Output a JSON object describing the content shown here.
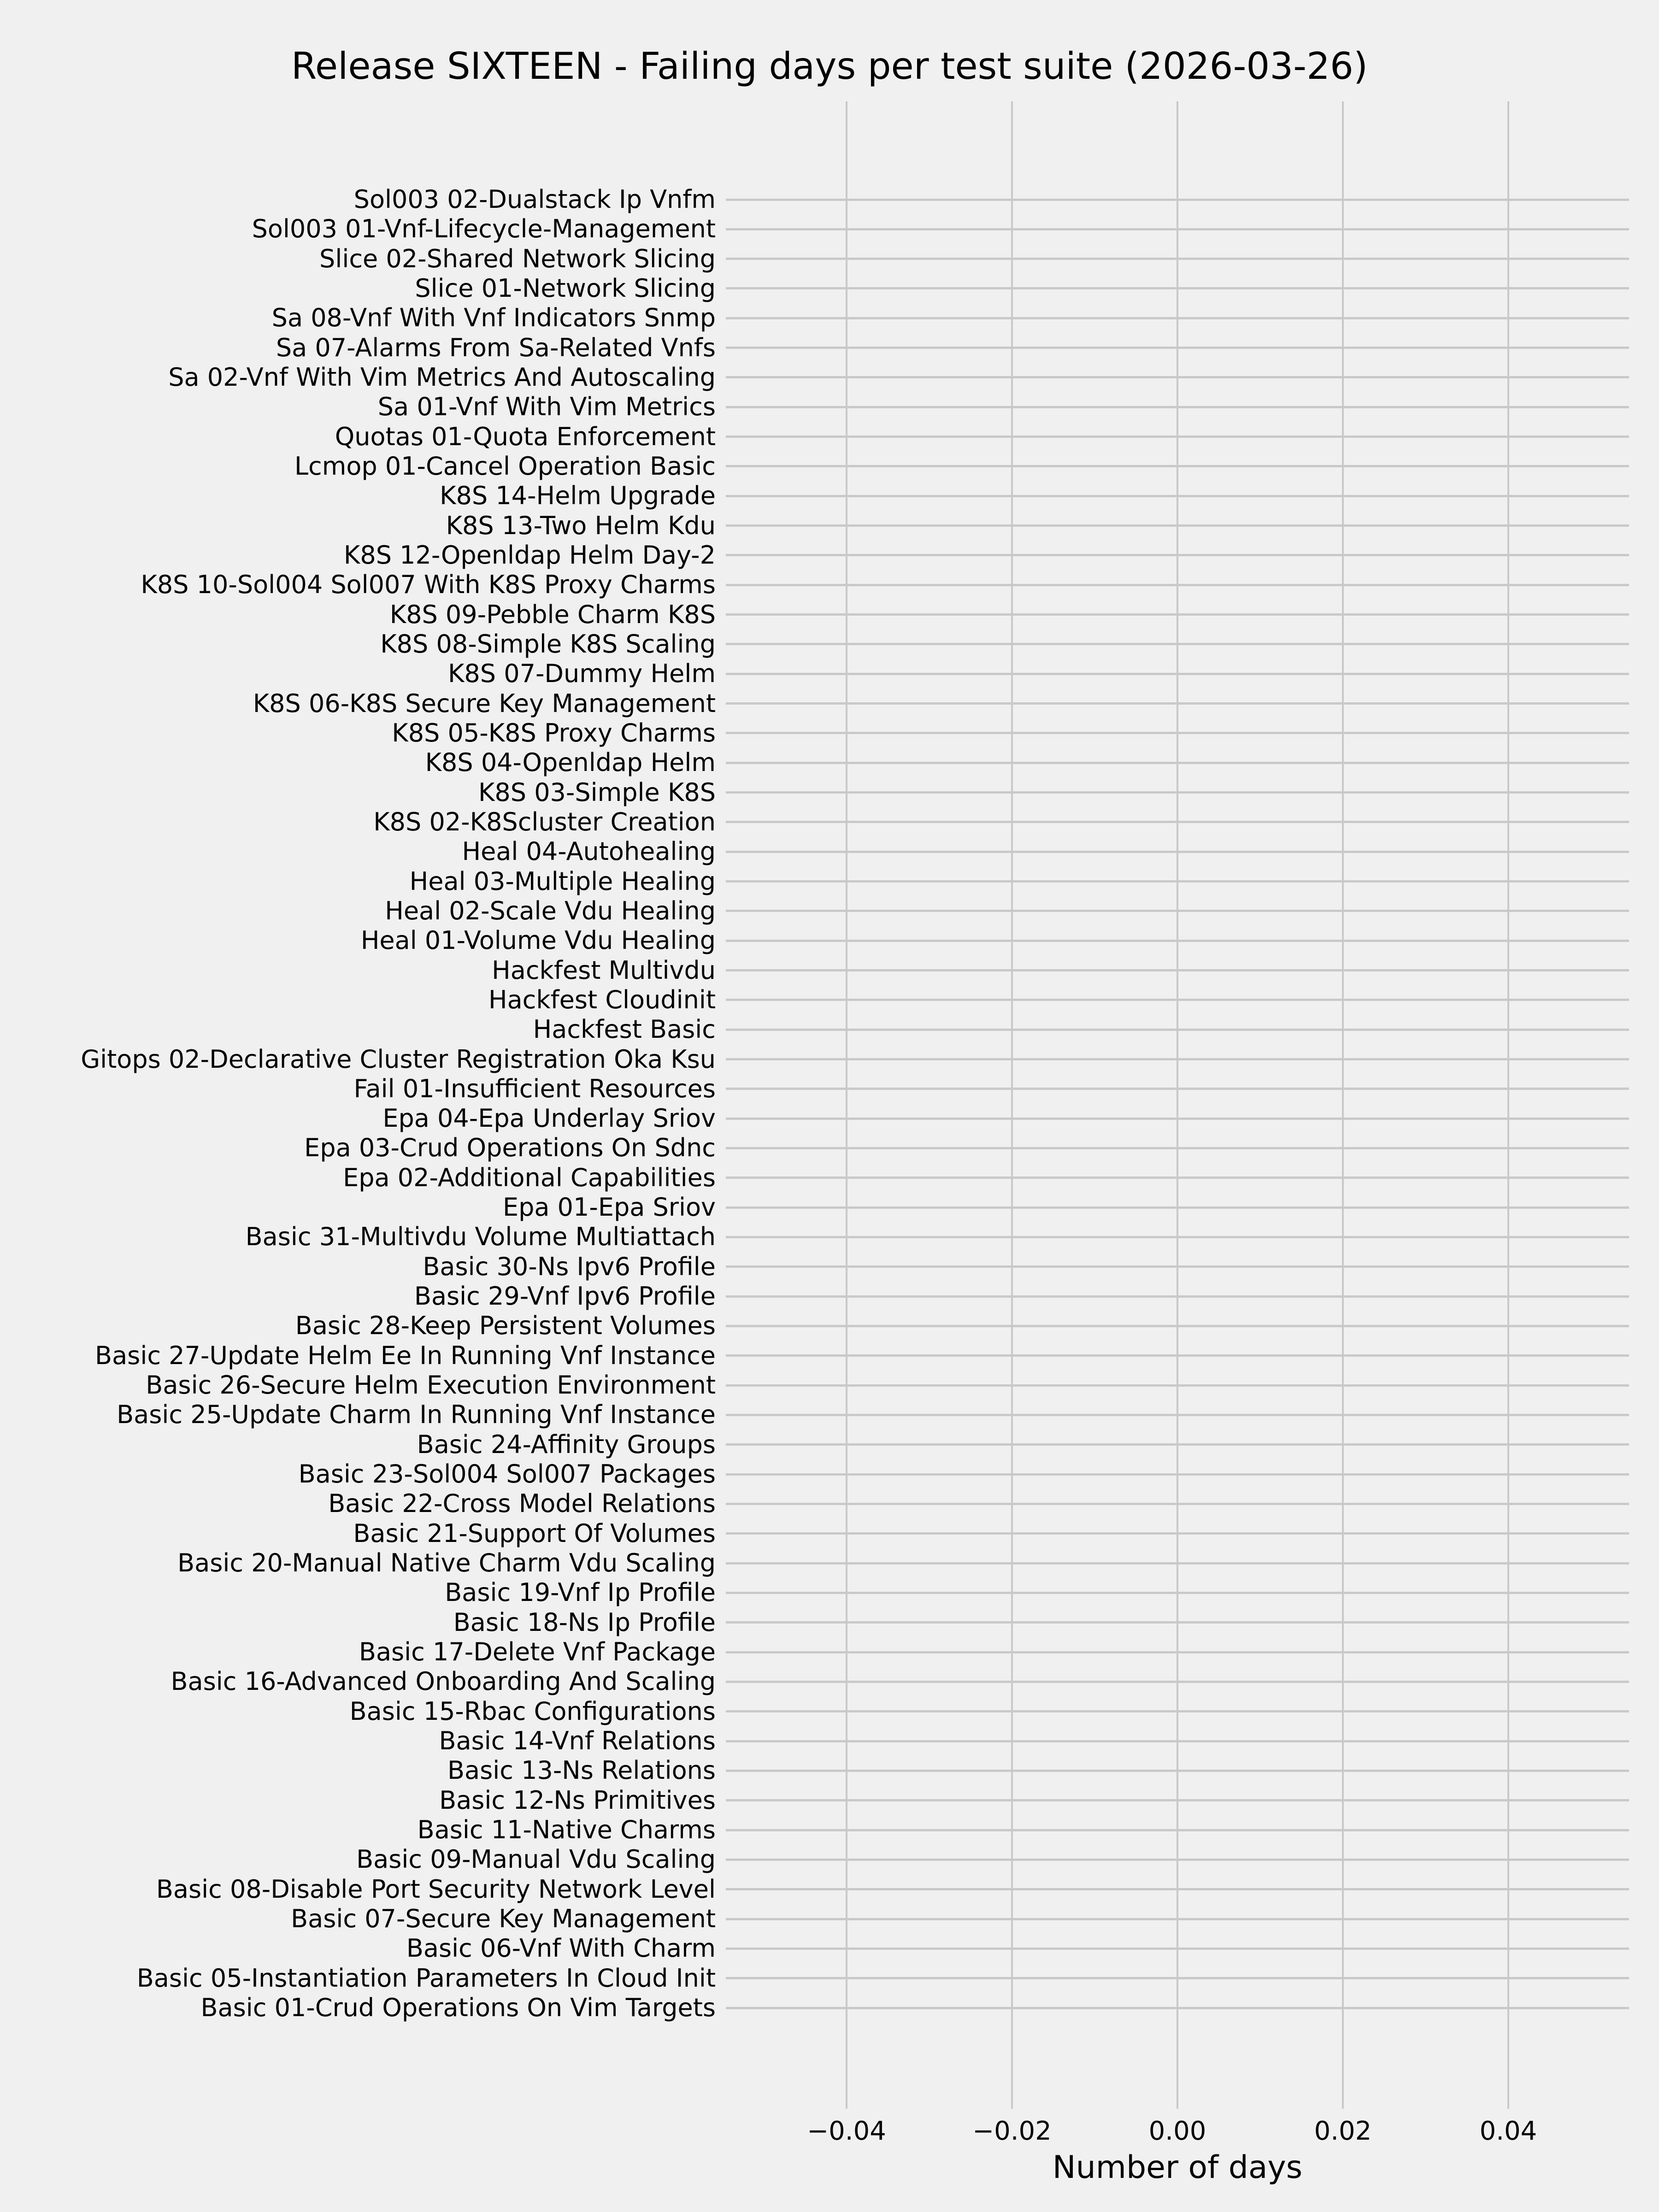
{
  "figure": {
    "title": "Release SIXTEEN - Failing days per test suite (2026-03-26)"
  },
  "chart_data": {
    "type": "bar",
    "orientation": "horizontal",
    "title": "Release SIXTEEN - Failing days per test suite (2026-03-26)",
    "xlabel": "Number of days",
    "ylabel": "",
    "grid": true,
    "legend": false,
    "xlim": [
      -0.0546,
      0.0546
    ],
    "xticks": [
      {
        "value": -0.04,
        "label": "−0.04"
      },
      {
        "value": -0.02,
        "label": "−0.02"
      },
      {
        "value": 0.0,
        "label": "0.00"
      },
      {
        "value": 0.02,
        "label": "0.02"
      },
      {
        "value": 0.04,
        "label": "0.04"
      }
    ],
    "categories": [
      "Sol003 02-Dualstack Ip Vnfm",
      "Sol003 01-Vnf-Lifecycle-Management",
      "Slice 02-Shared Network Slicing",
      "Slice 01-Network Slicing",
      "Sa 08-Vnf With Vnf Indicators Snmp",
      "Sa 07-Alarms From Sa-Related Vnfs",
      "Sa 02-Vnf With Vim Metrics And Autoscaling",
      "Sa 01-Vnf With Vim Metrics",
      "Quotas 01-Quota Enforcement",
      "Lcmop 01-Cancel Operation Basic",
      "K8S 14-Helm Upgrade",
      "K8S 13-Two Helm Kdu",
      "K8S 12-Openldap Helm Day-2",
      "K8S 10-Sol004 Sol007 With K8S Proxy Charms",
      "K8S 09-Pebble Charm K8S",
      "K8S 08-Simple K8S Scaling",
      "K8S 07-Dummy Helm",
      "K8S 06-K8S Secure Key Management",
      "K8S 05-K8S Proxy Charms",
      "K8S 04-Openldap Helm",
      "K8S 03-Simple K8S",
      "K8S 02-K8Scluster Creation",
      "Heal 04-Autohealing",
      "Heal 03-Multiple Healing",
      "Heal 02-Scale Vdu Healing",
      "Heal 01-Volume Vdu Healing",
      "Hackfest Multivdu",
      "Hackfest Cloudinit",
      "Hackfest Basic",
      "Gitops 02-Declarative Cluster Registration Oka Ksu",
      "Fail 01-Insufficient Resources",
      "Epa 04-Epa Underlay Sriov",
      "Epa 03-Crud Operations On Sdnc",
      "Epa 02-Additional Capabilities",
      "Epa 01-Epa Sriov",
      "Basic 31-Multivdu Volume Multiattach",
      "Basic 30-Ns Ipv6 Profile",
      "Basic 29-Vnf Ipv6 Profile",
      "Basic 28-Keep Persistent Volumes",
      "Basic 27-Update Helm Ee In Running Vnf Instance",
      "Basic 26-Secure Helm Execution Environment",
      "Basic 25-Update Charm In Running Vnf Instance",
      "Basic 24-Affinity Groups",
      "Basic 23-Sol004 Sol007 Packages",
      "Basic 22-Cross Model Relations",
      "Basic 21-Support Of Volumes",
      "Basic 20-Manual Native Charm Vdu Scaling",
      "Basic 19-Vnf Ip Profile",
      "Basic 18-Ns Ip Profile",
      "Basic 17-Delete Vnf Package",
      "Basic 16-Advanced Onboarding And Scaling",
      "Basic 15-Rbac Configurations",
      "Basic 14-Vnf Relations",
      "Basic 13-Ns Relations",
      "Basic 12-Ns Primitives",
      "Basic 11-Native Charms",
      "Basic 09-Manual Vdu Scaling",
      "Basic 08-Disable Port Security Network Level",
      "Basic 07-Secure Key Management",
      "Basic 06-Vnf With Charm",
      "Basic 05-Instantiation Parameters In Cloud Init",
      "Basic 01-Crud Operations On Vim Targets"
    ],
    "values": [
      0,
      0,
      0,
      0,
      0,
      0,
      0,
      0,
      0,
      0,
      0,
      0,
      0,
      0,
      0,
      0,
      0,
      0,
      0,
      0,
      0,
      0,
      0,
      0,
      0,
      0,
      0,
      0,
      0,
      0,
      0,
      0,
      0,
      0,
      0,
      0,
      0,
      0,
      0,
      0,
      0,
      0,
      0,
      0,
      0,
      0,
      0,
      0,
      0,
      0,
      0,
      0,
      0,
      0,
      0,
      0,
      0,
      0,
      0,
      0,
      0,
      0
    ],
    "colors": {
      "background": "#f0f0f0",
      "grid": "#c9c9c9",
      "text": "#000000"
    }
  }
}
